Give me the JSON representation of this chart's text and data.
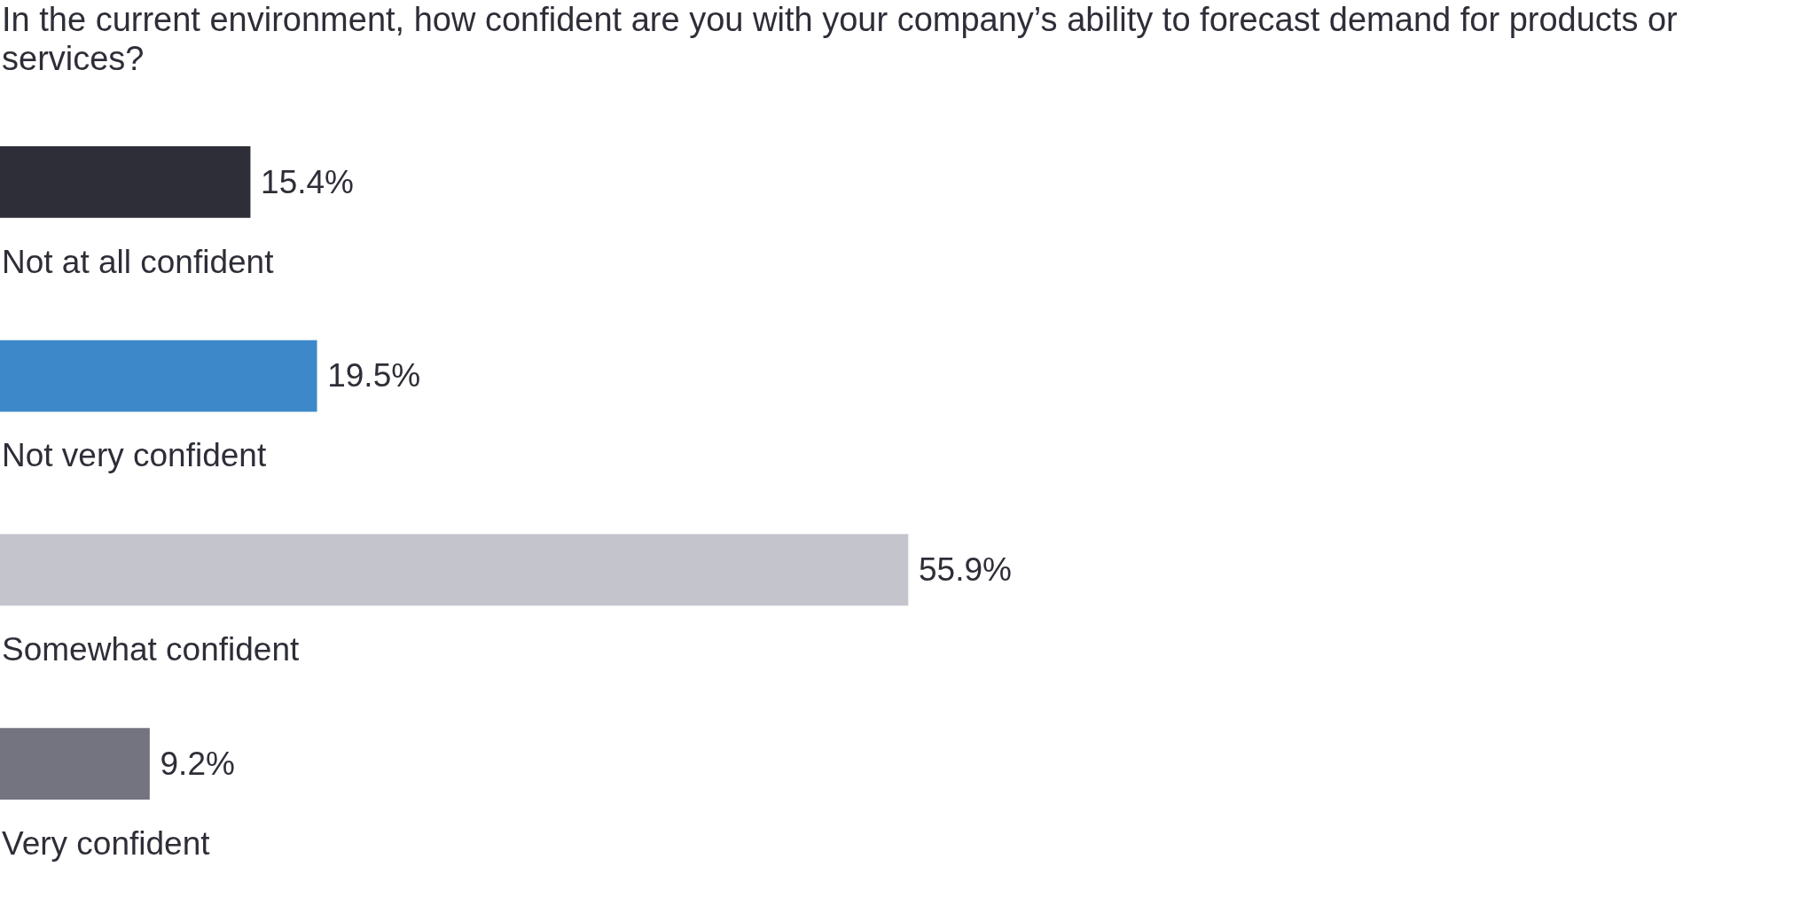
{
  "chart_data": {
    "type": "bar",
    "orientation": "horizontal",
    "title": "In the current environment, how confident are you with your company’s ability to forecast demand for products or services?",
    "categories": [
      "Not at all confident",
      "Not very confident",
      "Somewhat confident",
      "Very confident"
    ],
    "values": [
      15.4,
      19.5,
      55.9,
      9.2
    ],
    "colors": [
      "#2e2e38",
      "#3d88c9",
      "#c4c4cd",
      "#747480"
    ],
    "value_labels": [
      "15.4%",
      "19.5%",
      "55.9%",
      "9.2%"
    ]
  }
}
